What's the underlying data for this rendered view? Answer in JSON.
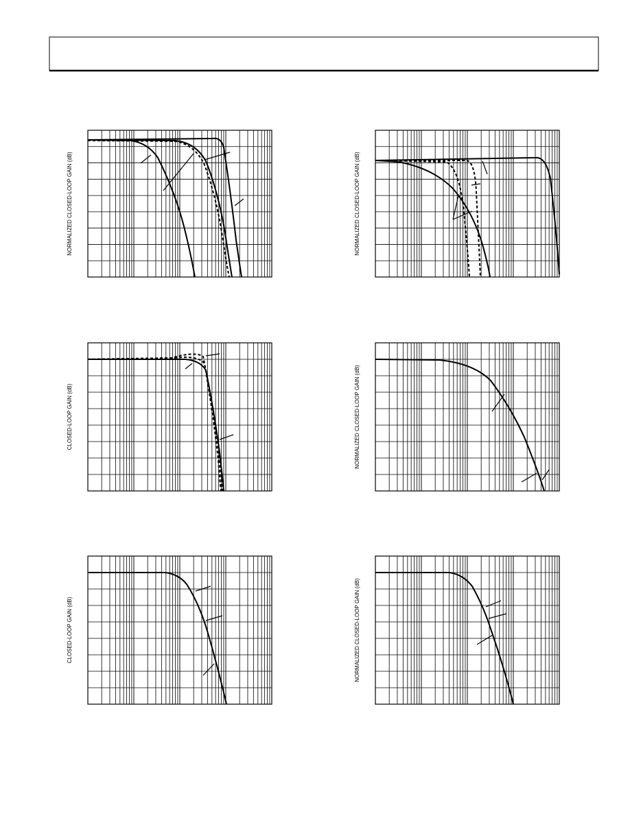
{
  "plots": [
    {
      "y_axis_label": "NORMALIZED CLOSED-LOOP GAIN (dB)"
    },
    {
      "y_axis_label": "NORMALIZED CLOSED-LOOP GAIN (dB)"
    },
    {
      "y_axis_label": "CLOSED-LOOP GAIN (dB)"
    },
    {
      "y_axis_label": "NORMALIZED CLOSED-LOOP GAIN (dB)"
    },
    {
      "y_axis_label": "CLOSED-LOOP GAIN (dB)"
    },
    {
      "y_axis_label": "NORMALIZED CLOSED-LOOP GAIN (dB)"
    }
  ]
}
